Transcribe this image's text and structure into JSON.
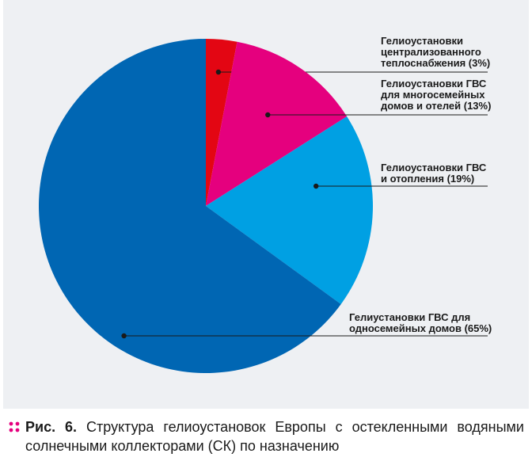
{
  "chart_data": {
    "type": "pie",
    "title": "",
    "slices": [
      {
        "label": "Гелиоустановки централизованного теплоснабжения (3%)",
        "value": 3,
        "color": "#e30613"
      },
      {
        "label": "Гелиоустановки ГВС для многосемейных домов и отелей (13%)",
        "value": 13,
        "color": "#e5007e"
      },
      {
        "label": "Гелиоустановки ГВС и отопления (19%)",
        "value": 19,
        "color": "#00a0e3"
      },
      {
        "label": "Гелиустановки ГВС для односемейных домов (65%)",
        "value": 65,
        "color": "#0066b3"
      }
    ],
    "legend": "none"
  },
  "labels": [
    "Гелиоустановки\nцентрализованного\nтеплоснабжения (3%)",
    "Гелиоустановки ГВС\nдля многосемейных\nдомов и отелей (13%)",
    "Гелиоустановки ГВС\nи отопления (19%)",
    "Гелиустановки ГВС для\nодносемейных домов (65%)"
  ],
  "caption": {
    "figure_label": "Рис. 6.",
    "text": "Структура гелиоустановок Европы с остекленными водяными солнечными коллекторами (СК) по назначению"
  }
}
